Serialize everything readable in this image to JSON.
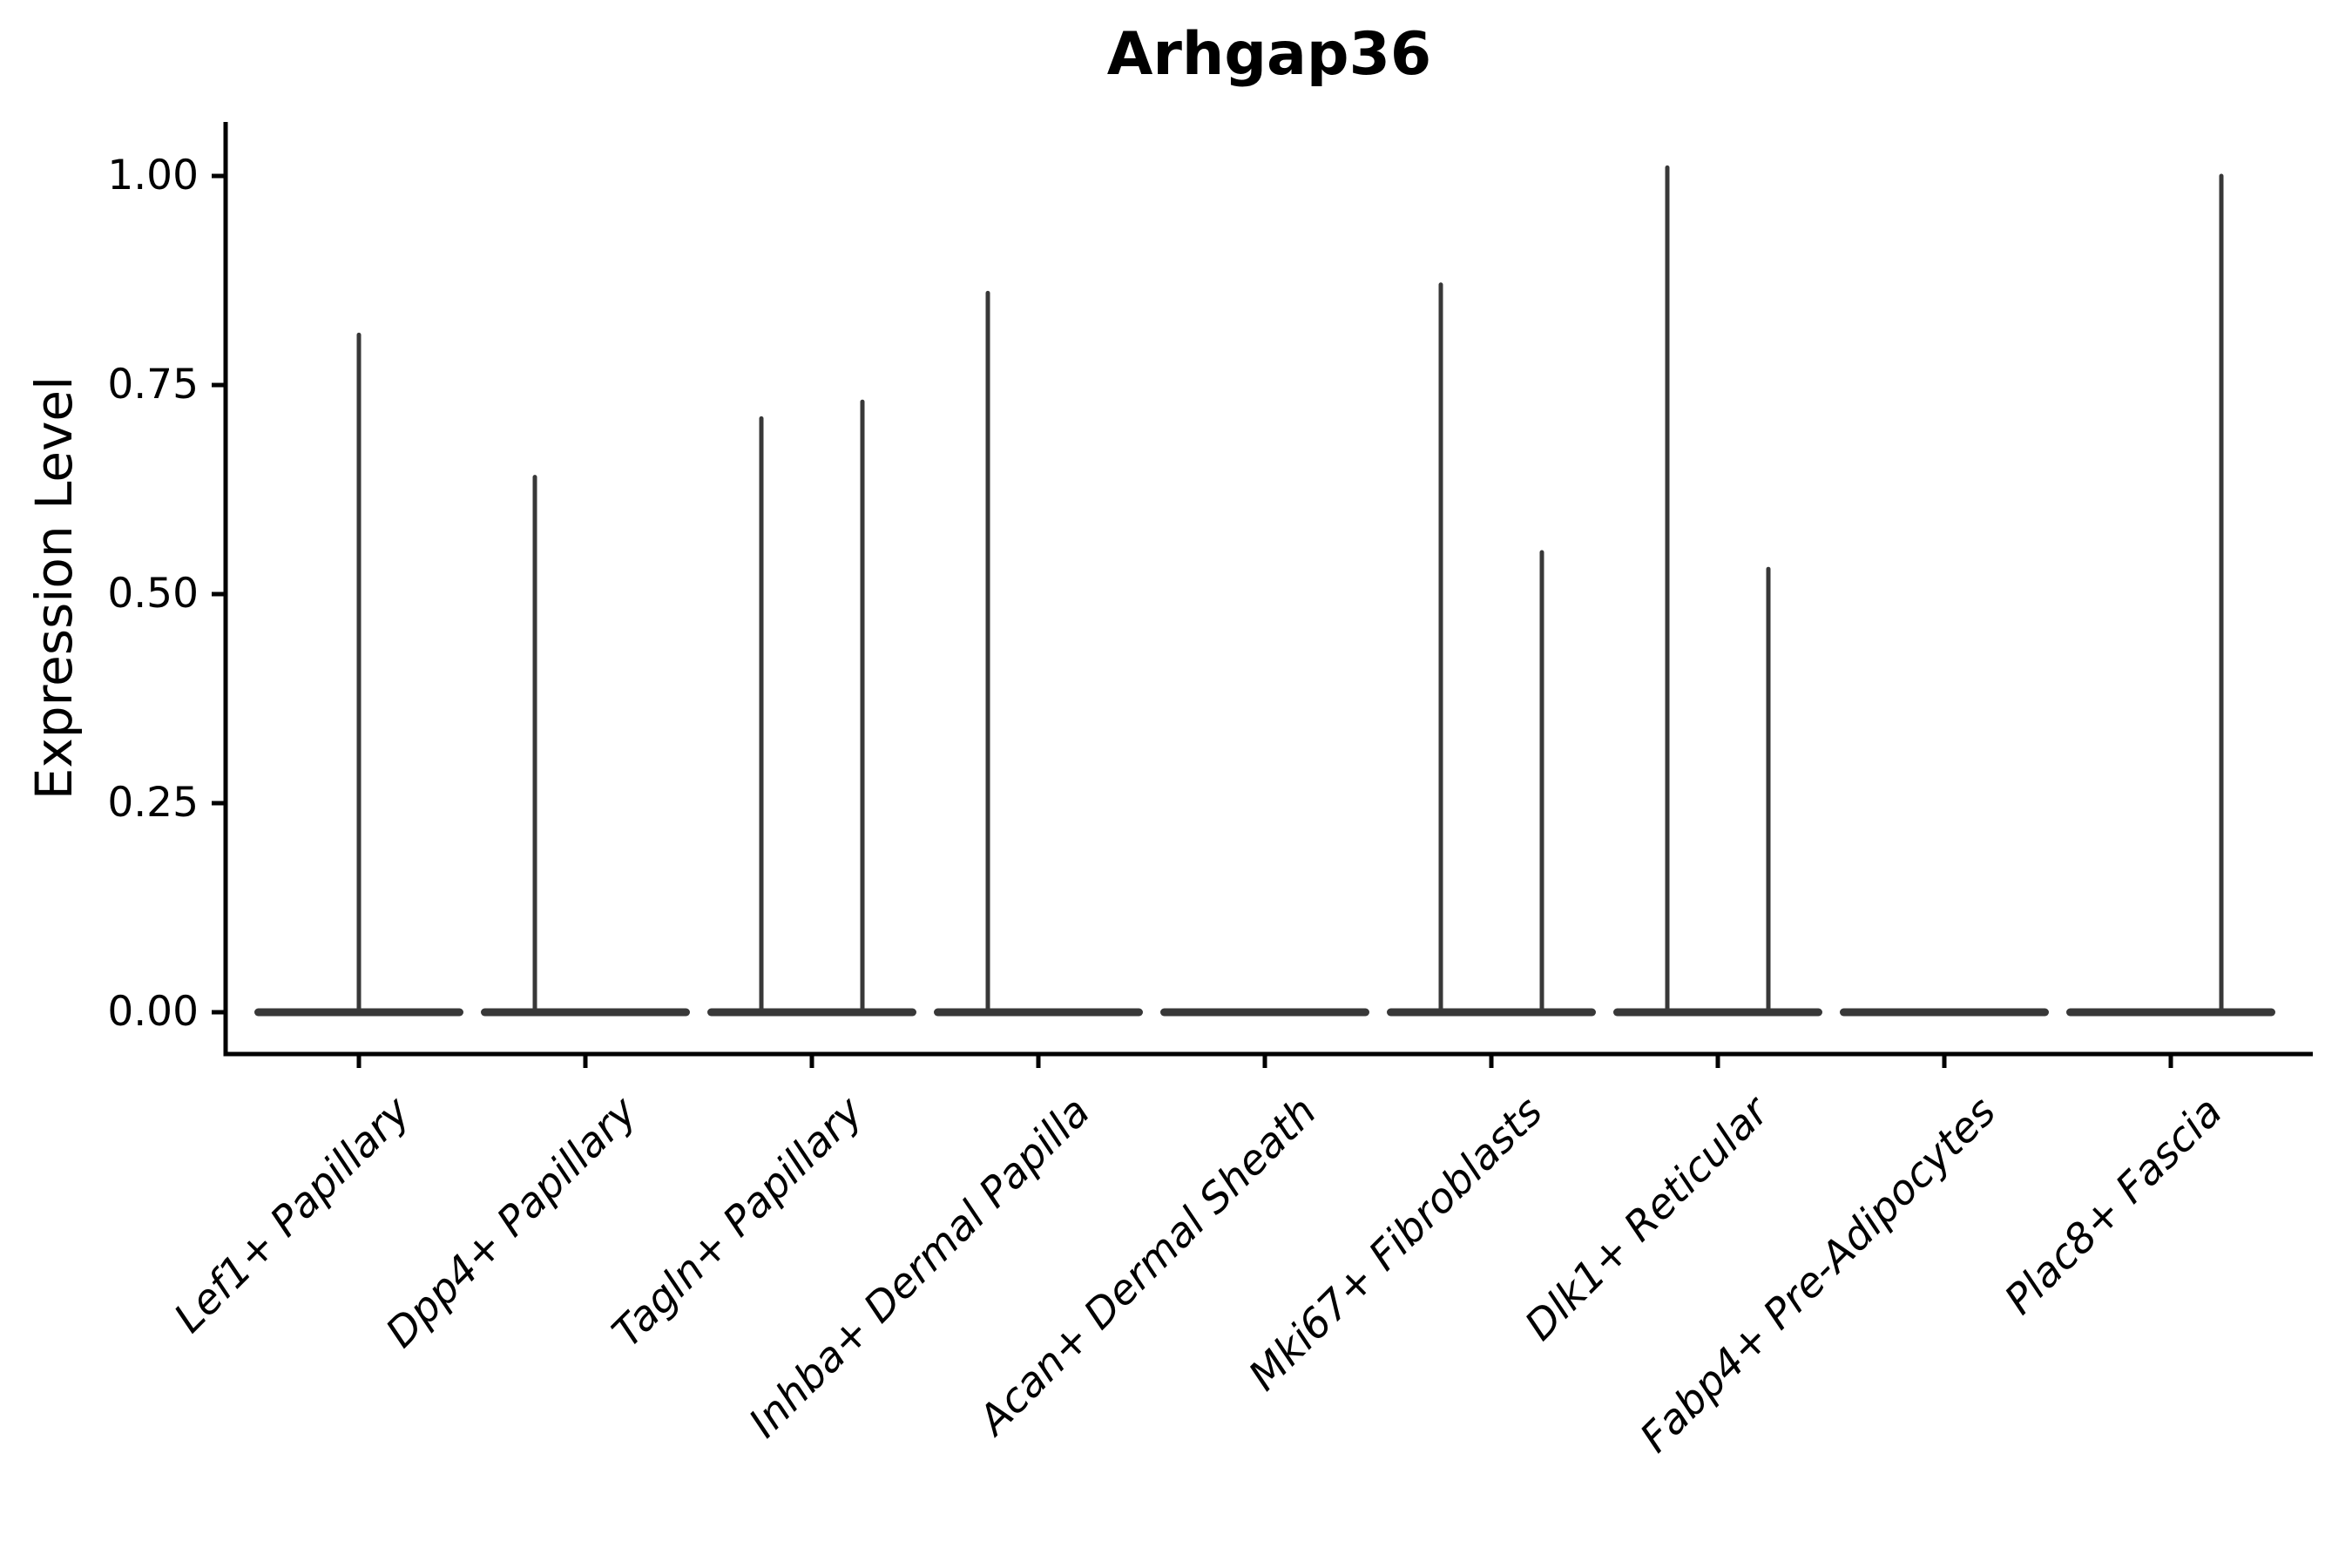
{
  "figure": {
    "title": "Arhgap36",
    "ylabel": "Expression Level"
  },
  "chart_data": {
    "type": "violin",
    "title": "Arhgap36",
    "xlabel": "",
    "ylabel": "Expression Level",
    "ylim": [
      0,
      1.06
    ],
    "grid": false,
    "legend": null,
    "violin_color": "#383838",
    "axis_color": "#000000",
    "yticks": {
      "values": [
        0,
        0.25,
        0.5,
        0.75,
        1.0
      ],
      "labels": [
        "0.00",
        "0.25",
        "0.50",
        "0.75",
        "1.00"
      ]
    },
    "categories": [
      "Lef1+ Papillary",
      "Dpp4+ Papillary",
      "Tagln+ Papillary",
      "Inhba+ Dermal Papilla",
      "Acan+ Dermal Sheath",
      "Mki67+ Fibroblasts",
      "Dlk1+ Reticular",
      "Fabp4+ Pre-Adipocytes",
      "Plac8+ Fascia"
    ],
    "violins": [
      {
        "category": "Lef1+ Papillary",
        "baseline": 0.0,
        "spikes": [
          {
            "position": "center",
            "max_expression": 0.81
          }
        ]
      },
      {
        "category": "Dpp4+ Papillary",
        "baseline": 0.0,
        "spikes": [
          {
            "position": "left",
            "max_expression": 0.64
          }
        ]
      },
      {
        "category": "Tagln+ Papillary",
        "baseline": 0.0,
        "spikes": [
          {
            "position": "left",
            "max_expression": 0.71
          },
          {
            "position": "right",
            "max_expression": 0.73
          }
        ]
      },
      {
        "category": "Inhba+ Dermal Papilla",
        "baseline": 0.0,
        "spikes": [
          {
            "position": "left",
            "max_expression": 0.86
          }
        ]
      },
      {
        "category": "Acan+ Dermal Sheath",
        "baseline": 0.0,
        "spikes": []
      },
      {
        "category": "Mki67+ Fibroblasts",
        "baseline": 0.0,
        "spikes": [
          {
            "position": "left",
            "max_expression": 0.87
          },
          {
            "position": "right",
            "max_expression": 0.55
          }
        ]
      },
      {
        "category": "Dlk1+ Reticular",
        "baseline": 0.0,
        "spikes": [
          {
            "position": "left",
            "max_expression": 1.01
          },
          {
            "position": "right",
            "max_expression": 0.53
          }
        ]
      },
      {
        "category": "Fabp4+ Pre-Adipocytes",
        "baseline": 0.0,
        "spikes": []
      },
      {
        "category": "Plac8+ Fascia",
        "baseline": 0.0,
        "spikes": [
          {
            "position": "right",
            "max_expression": 1.0
          }
        ]
      }
    ]
  }
}
